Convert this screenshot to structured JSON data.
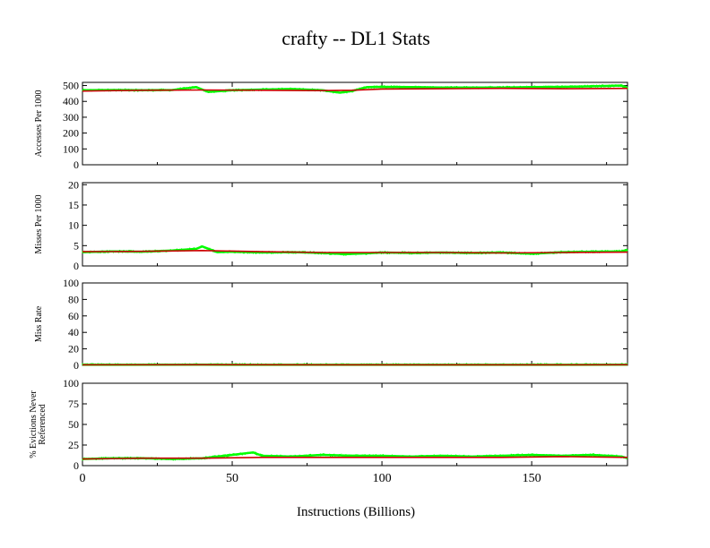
{
  "title": "crafty -- DL1  Stats",
  "xlabel": "Instructions (Billions)",
  "colors": {
    "raw": "#00ff00",
    "smooth": "#cc0000",
    "axis": "#000000"
  },
  "chart_data": [
    {
      "type": "line",
      "ylabel": [
        "Accesses Per 1000"
      ],
      "xlim": [
        0,
        182
      ],
      "ylim": [
        0,
        520
      ],
      "yticks": [
        0,
        100,
        200,
        300,
        400,
        500
      ],
      "xticks": [
        0,
        50,
        100,
        150
      ],
      "show_xtick_labels": false,
      "series": [
        {
          "role": "raw",
          "x": [
            0,
            10,
            20,
            30,
            38,
            42,
            50,
            60,
            70,
            80,
            86,
            90,
            95,
            100,
            110,
            120,
            130,
            140,
            150,
            160,
            170,
            180,
            182
          ],
          "y": [
            470,
            472,
            470,
            472,
            490,
            460,
            470,
            475,
            478,
            470,
            455,
            465,
            490,
            492,
            490,
            488,
            487,
            488,
            490,
            492,
            495,
            500,
            485
          ]
        },
        {
          "role": "smooth",
          "x": [
            0,
            20,
            40,
            60,
            80,
            90,
            100,
            120,
            140,
            160,
            182
          ],
          "y": [
            465,
            470,
            472,
            470,
            468,
            470,
            478,
            480,
            482,
            480,
            482
          ]
        }
      ]
    },
    {
      "type": "line",
      "ylabel": [
        "Misses Per 1000"
      ],
      "xlim": [
        0,
        182
      ],
      "ylim": [
        0,
        20.5
      ],
      "yticks": [
        0,
        5,
        10,
        15,
        20
      ],
      "xticks": [
        0,
        50,
        100,
        150
      ],
      "show_xtick_labels": false,
      "series": [
        {
          "role": "raw",
          "x": [
            0,
            10,
            20,
            30,
            38,
            40,
            45,
            50,
            60,
            70,
            80,
            88,
            95,
            100,
            110,
            120,
            130,
            140,
            150,
            160,
            170,
            180,
            182
          ],
          "y": [
            3.4,
            3.6,
            3.5,
            3.8,
            4.2,
            4.8,
            3.4,
            3.5,
            3.3,
            3.4,
            3.2,
            2.9,
            3.1,
            3.3,
            3.2,
            3.3,
            3.2,
            3.3,
            3.0,
            3.4,
            3.5,
            3.6,
            4.0
          ]
        },
        {
          "role": "smooth",
          "x": [
            0,
            20,
            40,
            60,
            80,
            100,
            120,
            140,
            160,
            182
          ],
          "y": [
            3.5,
            3.6,
            3.8,
            3.5,
            3.3,
            3.3,
            3.3,
            3.2,
            3.3,
            3.4
          ]
        }
      ]
    },
    {
      "type": "line",
      "ylabel": [
        "Miss Rate"
      ],
      "xlim": [
        0,
        182
      ],
      "ylim": [
        0,
        100
      ],
      "yticks": [
        0,
        20,
        40,
        60,
        80,
        100
      ],
      "xticks": [
        0,
        50,
        100,
        150
      ],
      "show_xtick_labels": false,
      "series": [
        {
          "role": "raw",
          "x": [
            0,
            40,
            80,
            120,
            160,
            182
          ],
          "y": [
            0.7,
            0.8,
            0.7,
            0.7,
            0.7,
            0.8
          ]
        },
        {
          "role": "smooth",
          "x": [
            0,
            40,
            80,
            120,
            160,
            182
          ],
          "y": [
            0.7,
            0.8,
            0.7,
            0.7,
            0.7,
            0.8
          ]
        }
      ]
    },
    {
      "type": "line",
      "ylabel": [
        "% Evictions Never",
        "Referenced"
      ],
      "xlim": [
        0,
        182
      ],
      "ylim": [
        0,
        100
      ],
      "yticks": [
        0,
        25,
        50,
        75,
        100
      ],
      "xticks": [
        0,
        50,
        100,
        150
      ],
      "show_xtick_labels": true,
      "series": [
        {
          "role": "raw",
          "x": [
            0,
            10,
            20,
            30,
            40,
            45,
            50,
            57,
            60,
            70,
            80,
            90,
            100,
            110,
            120,
            130,
            140,
            150,
            160,
            170,
            180,
            182
          ],
          "y": [
            8,
            9,
            9,
            8,
            9,
            11,
            13,
            16,
            12,
            11,
            13,
            12,
            12,
            11,
            12,
            11,
            12,
            13,
            12,
            13,
            11,
            9
          ]
        },
        {
          "role": "smooth",
          "x": [
            0,
            20,
            40,
            60,
            80,
            100,
            120,
            140,
            160,
            182
          ],
          "y": [
            8,
            9,
            9,
            10,
            10,
            10,
            10,
            10,
            11,
            10
          ]
        }
      ]
    }
  ]
}
